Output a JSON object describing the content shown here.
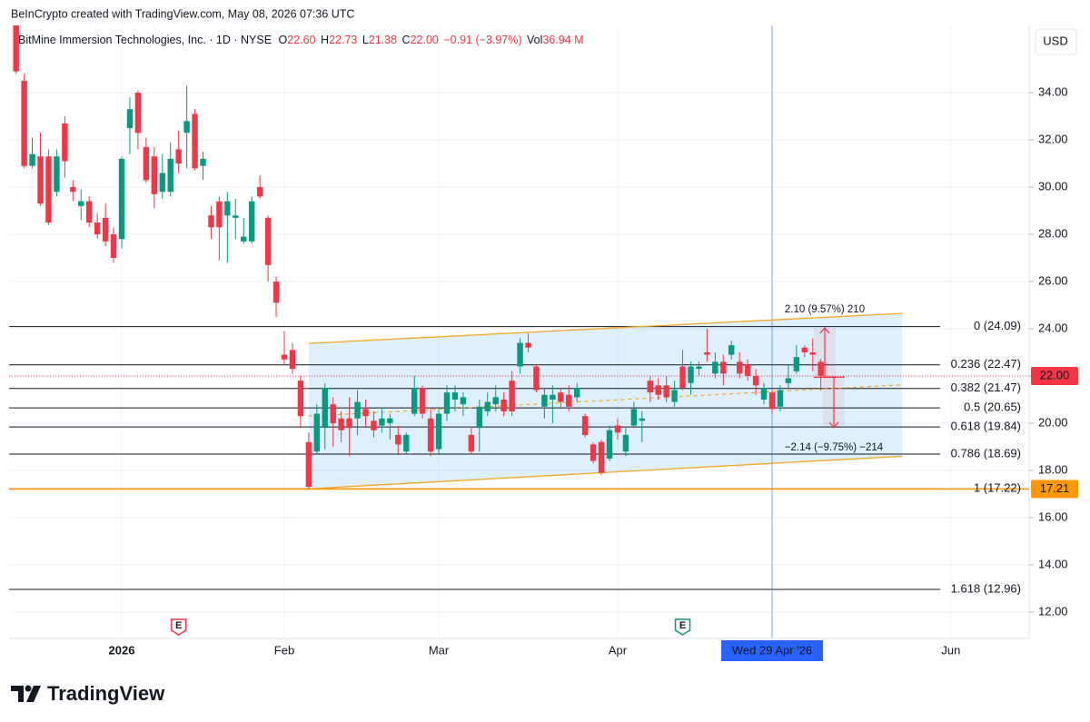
{
  "header": {
    "attribution": "BeInCrypto created with TradingView.com, May 08, 2026 07:36 UTC",
    "symbol": "BitMine Immersion Technologies, Inc. · 1D · NYSE",
    "ohlc": [
      {
        "key": "O",
        "value": "22.60"
      },
      {
        "key": "H",
        "value": "22.73"
      },
      {
        "key": "L",
        "value": "21.38"
      },
      {
        "key": "C",
        "value": "22.00"
      }
    ],
    "change": "−0.91 (−3.97%)",
    "volume_key": "Vol",
    "volume": "36.94 M",
    "currency": "USD"
  },
  "chart_data": {
    "type": "candlestick",
    "categories": [
      null,
      null,
      null,
      null,
      null,
      null,
      null,
      null,
      null,
      null,
      null,
      null,
      null,
      "2026",
      null,
      null,
      null,
      null,
      null,
      null,
      null,
      null,
      null,
      null,
      null,
      null,
      null,
      null,
      null,
      null,
      null,
      null,
      null,
      "Feb",
      null,
      null,
      null,
      null,
      null,
      null,
      null,
      null,
      null,
      null,
      null,
      null,
      null,
      null,
      null,
      null,
      null,
      null,
      "Mar",
      null,
      null,
      null,
      null,
      null,
      null,
      null,
      null,
      null,
      null,
      null,
      null,
      null,
      null,
      null,
      null,
      null,
      null,
      null,
      null,
      null,
      "Apr",
      null,
      null,
      null,
      null,
      null,
      null,
      null,
      null,
      null,
      null,
      null,
      null,
      null,
      null,
      null,
      null,
      null,
      null,
      "Wed 29 Apr '26",
      null,
      null,
      null,
      null,
      null,
      null,
      null,
      null,
      null,
      null,
      null,
      null,
      null,
      null,
      null,
      null,
      null,
      null,
      null,
      null,
      null,
      "Jun"
    ],
    "open": [
      36.9,
      34.5,
      30.9,
      31.3,
      31.3,
      29.8,
      32.7,
      30.0,
      29.2,
      29.4,
      28.5,
      28.7,
      28.0,
      27.8,
      32.5,
      34.0,
      31.7,
      31.3,
      29.8,
      29.8,
      31.6,
      32.3,
      33.1,
      30.9,
      28.8,
      29.4,
      28.8,
      28.7,
      27.7,
      27.7,
      30.0,
      28.7,
      26.0,
      22.9,
      23.1,
      21.8,
      19.2,
      18.8,
      19.8,
      20.8,
      20.2,
      20.2,
      20.2,
      20.6,
      20.1,
      19.9,
      20.0,
      19.5,
      18.8,
      20.4,
      21.5,
      20.2,
      18.9,
      20.4,
      21.0,
      20.8,
      19.5,
      19.8,
      20.5,
      20.8,
      21.0,
      21.8,
      22.4,
      23.4,
      22.4,
      20.7,
      21.0,
      21.3,
      21.2,
      21.1,
      20.3,
      19.1,
      19.2,
      18.5,
      19.9,
      18.8,
      19.9,
      20.1,
      21.8,
      21.6,
      21.6,
      20.9,
      22.4,
      21.7,
      22.3,
      23.0,
      22.1,
      22.6,
      22.9,
      22.6,
      22.5,
      22.0,
      21.0,
      21.3,
      20.7,
      21.7,
      22.2,
      23.2,
      23.0,
      22.6,
      null,
      null,
      null,
      null,
      null,
      null,
      null,
      null,
      null,
      null,
      null,
      null,
      null,
      null,
      null,
      null
    ],
    "high": [
      37.2,
      34.8,
      32.1,
      32.3,
      31.6,
      31.6,
      33.0,
      30.3,
      29.9,
      29.6,
      28.9,
      29.3,
      28.3,
      31.3,
      33.8,
      34.1,
      32.1,
      31.7,
      31.4,
      31.9,
      32.4,
      34.3,
      33.3,
      31.5,
      29.2,
      29.6,
      29.8,
      29.5,
      28.7,
      29.6,
      30.5,
      28.8,
      26.2,
      23.9,
      23.4,
      22.0,
      19.6,
      20.8,
      21.7,
      21.1,
      20.5,
      21.1,
      21.4,
      21.0,
      20.5,
      20.6,
      20.4,
      19.9,
      19.6,
      22.0,
      21.6,
      20.6,
      20.6,
      21.6,
      21.6,
      21.3,
      19.8,
      21.0,
      21.3,
      21.6,
      21.3,
      22.2,
      23.6,
      23.8,
      22.5,
      21.5,
      21.6,
      21.5,
      21.6,
      21.7,
      20.4,
      19.2,
      19.3,
      19.9,
      20.2,
      19.8,
      20.9,
      20.5,
      22.0,
      21.9,
      22.0,
      21.8,
      23.1,
      22.6,
      22.6,
      24.0,
      23.0,
      22.9,
      23.5,
      23.0,
      22.7,
      22.3,
      21.7,
      21.4,
      21.6,
      22.5,
      23.3,
      23.3,
      23.6,
      22.73,
      null,
      null,
      null,
      null,
      null,
      null,
      null,
      null,
      null,
      null,
      null,
      null,
      null,
      null,
      null,
      null
    ],
    "low": [
      34.8,
      30.8,
      30.8,
      29.2,
      28.4,
      29.6,
      30.4,
      29.4,
      28.6,
      28.3,
      27.8,
      27.5,
      26.8,
      27.4,
      31.4,
      31.6,
      30.2,
      29.1,
      29.5,
      29.6,
      30.6,
      30.8,
      30.7,
      30.3,
      27.8,
      26.9,
      26.8,
      27.8,
      27.6,
      27.6,
      29.5,
      26.0,
      24.5,
      22.5,
      22.1,
      19.8,
      17.2,
      18.7,
      18.9,
      19.0,
      19.2,
      18.6,
      19.5,
      19.8,
      19.4,
      19.6,
      19.3,
      18.7,
      18.7,
      20.3,
      20.2,
      18.6,
      18.7,
      20.1,
      20.5,
      20.3,
      18.7,
      18.8,
      20.3,
      20.5,
      20.3,
      20.3,
      22.1,
      23.0,
      21.3,
      20.2,
      20.0,
      20.6,
      20.5,
      20.9,
      19.4,
      18.3,
      17.8,
      18.4,
      19.3,
      18.6,
      19.8,
      19.2,
      20.9,
      21.0,
      20.9,
      20.7,
      21.4,
      21.2,
      22.0,
      22.6,
      21.9,
      21.6,
      22.7,
      21.9,
      21.8,
      21.2,
      20.8,
      20.4,
      20.5,
      21.5,
      22.1,
      22.8,
      22.2,
      21.38,
      null,
      null,
      null,
      null,
      null,
      null,
      null,
      null,
      null,
      null,
      null,
      null,
      null,
      null,
      null,
      null
    ],
    "close": [
      34.9,
      30.9,
      31.4,
      29.3,
      28.5,
      31.3,
      31.1,
      29.8,
      29.4,
      28.5,
      28.0,
      27.7,
      27.0,
      31.2,
      33.3,
      32.3,
      30.3,
      29.7,
      30.6,
      31.2,
      31.0,
      32.8,
      30.8,
      31.2,
      28.3,
      28.3,
      29.4,
      28.8,
      27.9,
      29.4,
      29.6,
      26.7,
      25.1,
      22.7,
      22.3,
      20.3,
      17.3,
      20.4,
      21.5,
      20.0,
      19.7,
      19.8,
      20.9,
      20.3,
      19.7,
      20.2,
      20.2,
      19.1,
      19.5,
      21.5,
      20.4,
      18.8,
      20.4,
      21.3,
      21.3,
      21.1,
      18.8,
      20.7,
      20.9,
      21.1,
      20.5,
      20.5,
      23.4,
      23.2,
      21.4,
      21.2,
      21.2,
      20.9,
      20.7,
      21.5,
      19.5,
      18.4,
      17.9,
      19.7,
      19.6,
      19.5,
      20.6,
      20.2,
      21.3,
      21.2,
      21.1,
      21.4,
      21.5,
      22.4,
      22.4,
      22.9,
      22.6,
      22.1,
      23.3,
      22.1,
      22.0,
      21.6,
      21.5,
      20.6,
      21.4,
      21.9,
      22.8,
      23.0,
      22.9,
      22.0,
      null,
      null,
      null,
      null,
      null,
      null,
      null,
      null,
      null,
      null,
      null,
      null,
      null,
      null,
      null,
      null
    ],
    "up_color": "#089981",
    "down_color": "#f23645",
    "ylim": [
      10.88,
      36.85
    ],
    "yticks": [
      {
        "value": 12,
        "label": "12.00"
      },
      {
        "value": 14,
        "label": "14.00"
      },
      {
        "value": 16,
        "label": "16.00"
      },
      {
        "value": 18,
        "label": "18.00"
      },
      {
        "value": 20,
        "label": "20.00"
      },
      {
        "value": 22,
        "label": "22.00"
      },
      {
        "value": 24,
        "label": "24.00"
      },
      {
        "value": 26,
        "label": "26.00"
      },
      {
        "value": 28,
        "label": "28.00"
      },
      {
        "value": 30,
        "label": "30.00"
      },
      {
        "value": 32,
        "label": "32.00"
      },
      {
        "value": 34,
        "label": "34.00"
      }
    ],
    "grid": true,
    "fib_levels": [
      {
        "value": 24.09,
        "label": "0 (24.09)"
      },
      {
        "value": 22.47,
        "label": "0.236 (22.47)"
      },
      {
        "value": 21.47,
        "label": "0.382 (21.47)"
      },
      {
        "value": 20.65,
        "label": "0.5 (20.65)"
      },
      {
        "value": 19.84,
        "label": "0.618 (19.84)"
      },
      {
        "value": 18.69,
        "label": "0.786 (18.69)"
      },
      {
        "value": 17.22,
        "label": "1 (17.22)"
      },
      {
        "value": 12.96,
        "label": "1.618 (12.96)"
      }
    ],
    "price_labels": [
      {
        "value": 22,
        "label": "22.00",
        "color": "#f23645",
        "line_style": "dotted"
      },
      {
        "value": 17.21,
        "label": "17.21",
        "color": "#ff9800",
        "line_style": "solid"
      }
    ],
    "channel": {
      "top": [
        23.38,
        24.65
      ],
      "bottom": [
        17.22,
        18.6
      ],
      "color": "#f5a623",
      "fill": "#2196f3"
    },
    "measures": [
      {
        "label": "2.10 (9.57%) 210",
        "from": 21.94,
        "to": 24.04,
        "color": "#f23645"
      },
      {
        "label": "−2.14 (−9.75%) −214",
        "from": 21.95,
        "to": 19.81,
        "color": "#f23645"
      }
    ],
    "earnings_markers": [
      {
        "label": "E",
        "color": "#f23645"
      },
      {
        "label": "E",
        "color": "#089981"
      }
    ],
    "crosshair_color": "#2962ff"
  },
  "footer": {
    "logo": "TradingView"
  }
}
